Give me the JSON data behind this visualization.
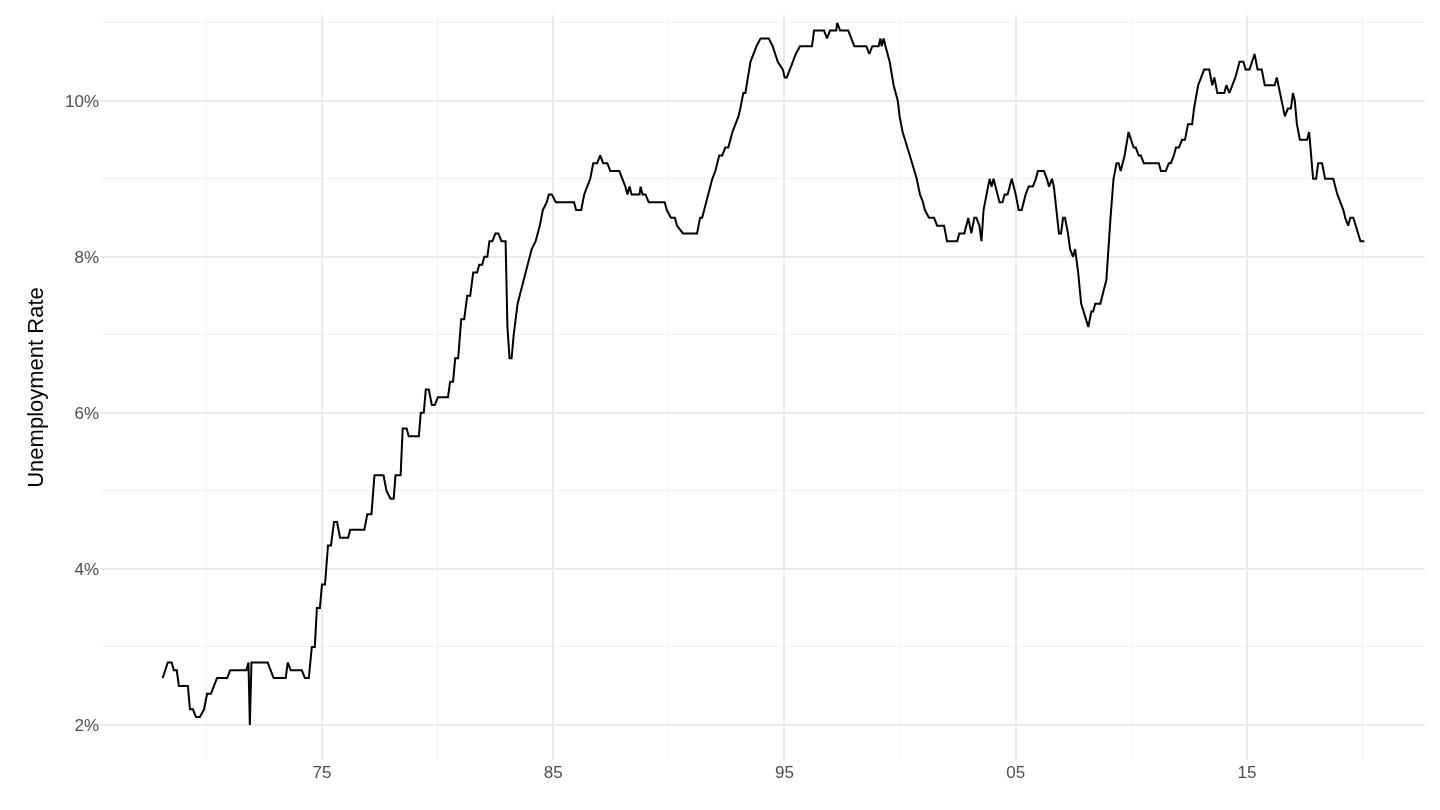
{
  "chart_data": {
    "type": "line",
    "ylabel": "Unemployment Rate",
    "xlim": [
      1965.4,
      2022.7
    ],
    "ylim": [
      1.55,
      11.1
    ],
    "xticks": [
      {
        "value": 1970,
        "label": null
      },
      {
        "value": 1975,
        "label": "75"
      },
      {
        "value": 1980,
        "label": null
      },
      {
        "value": 1985,
        "label": "85"
      },
      {
        "value": 1990,
        "label": null
      },
      {
        "value": 1995,
        "label": "95"
      },
      {
        "value": 2000,
        "label": null
      },
      {
        "value": 2005,
        "label": "05"
      },
      {
        "value": 2010,
        "label": null
      },
      {
        "value": 2015,
        "label": "15"
      },
      {
        "value": 2020,
        "label": null
      }
    ],
    "yticks": [
      {
        "value": 2,
        "label": "2%"
      },
      {
        "value": 3,
        "label": null
      },
      {
        "value": 4,
        "label": "4%"
      },
      {
        "value": 5,
        "label": null
      },
      {
        "value": 6,
        "label": "6%"
      },
      {
        "value": 7,
        "label": null
      },
      {
        "value": 8,
        "label": "8%"
      },
      {
        "value": 9,
        "label": null
      },
      {
        "value": 10,
        "label": "10%"
      },
      {
        "value": 11,
        "label": null
      }
    ],
    "grid": true,
    "marker": "none",
    "line_style": "solid",
    "series": [
      {
        "color": "#000000",
        "x": [
          1968.11,
          1968.33,
          1968.5,
          1968.59,
          1968.72,
          1968.81,
          1969.2,
          1969.29,
          1969.42,
          1969.55,
          1969.72,
          1969.9,
          1970.03,
          1970.2,
          1970.33,
          1970.46,
          1970.9,
          1971.03,
          1971.73,
          1971.82,
          1971.88,
          1971.95,
          1972.65,
          1972.78,
          1972.91,
          1973.43,
          1973.52,
          1973.65,
          1974.13,
          1974.26,
          1974.43,
          1974.56,
          1974.69,
          1974.78,
          1974.91,
          1975.0,
          1975.13,
          1975.26,
          1975.39,
          1975.52,
          1975.65,
          1975.78,
          1976.13,
          1976.22,
          1976.83,
          1976.96,
          1977.14,
          1977.27,
          1977.66,
          1977.79,
          1977.96,
          1978.1,
          1978.18,
          1978.4,
          1978.49,
          1978.66,
          1978.75,
          1979.19,
          1979.27,
          1979.4,
          1979.49,
          1979.62,
          1979.75,
          1979.88,
          1980.01,
          1980.45,
          1980.54,
          1980.67,
          1980.76,
          1980.89,
          1981.02,
          1981.15,
          1981.28,
          1981.41,
          1981.54,
          1981.71,
          1981.8,
          1981.93,
          1982.02,
          1982.15,
          1982.24,
          1982.37,
          1982.5,
          1982.63,
          1982.76,
          1982.94,
          1983.02,
          1983.11,
          1983.2,
          1983.29,
          1983.46,
          1983.72,
          1984.07,
          1984.24,
          1984.42,
          1984.55,
          1984.72,
          1984.81,
          1984.94,
          1985.11,
          1985.9,
          1985.99,
          1986.21,
          1986.34,
          1986.6,
          1986.73,
          1986.9,
          1987.03,
          1987.16,
          1987.34,
          1987.47,
          1987.86,
          1987.99,
          1988.12,
          1988.21,
          1988.3,
          1988.39,
          1988.73,
          1988.78,
          1988.86,
          1988.99,
          1989.13,
          1989.82,
          1989.91,
          1990.09,
          1990.26,
          1990.35,
          1990.61,
          1991.22,
          1991.35,
          1991.44,
          1991.88,
          1992.01,
          1992.18,
          1992.31,
          1992.44,
          1992.57,
          1992.75,
          1992.88,
          1993.01,
          1993.09,
          1993.22,
          1993.31,
          1993.53,
          1993.79,
          1993.97,
          1994.32,
          1994.49,
          1994.71,
          1994.93,
          1995.01,
          1995.1,
          1995.23,
          1995.36,
          1995.49,
          1995.67,
          1996.19,
          1996.28,
          1996.71,
          1996.84,
          1996.97,
          1997.24,
          1997.28,
          1997.41,
          1997.76,
          1997.89,
          1998.02,
          1998.54,
          1998.67,
          1998.8,
          1999.07,
          1999.15,
          1999.2,
          1999.29,
          1999.37,
          1999.55,
          1999.72,
          1999.9,
          1999.98,
          2000.11,
          2000.42,
          2000.72,
          2000.86,
          2000.99,
          2001.07,
          2001.25,
          2001.47,
          2001.6,
          2001.9,
          2002.03,
          2002.47,
          2002.56,
          2002.78,
          2002.95,
          2003.08,
          2003.21,
          2003.3,
          2003.43,
          2003.52,
          2003.61,
          2003.74,
          2003.87,
          2003.96,
          2004.04,
          2004.3,
          2004.43,
          2004.52,
          2004.65,
          2004.83,
          2005.0,
          2005.13,
          2005.26,
          2005.43,
          2005.56,
          2005.74,
          2005.87,
          2005.96,
          2006.22,
          2006.35,
          2006.44,
          2006.57,
          2006.65,
          2006.87,
          2006.96,
          2007.05,
          2007.13,
          2007.26,
          2007.35,
          2007.48,
          2007.57,
          2007.7,
          2007.83,
          2008.14,
          2008.27,
          2008.35,
          2008.44,
          2008.66,
          2008.83,
          2008.92,
          2009.1,
          2009.23,
          2009.36,
          2009.45,
          2009.54,
          2009.71,
          2009.88,
          2010.1,
          2010.19,
          2010.32,
          2010.41,
          2010.54,
          2011.19,
          2011.28,
          2011.49,
          2011.62,
          2011.71,
          2011.84,
          2011.93,
          2012.06,
          2012.19,
          2012.32,
          2012.45,
          2012.63,
          2012.71,
          2012.89,
          2013.02,
          2013.15,
          2013.37,
          2013.5,
          2013.59,
          2013.72,
          2014.02,
          2014.11,
          2014.24,
          2014.37,
          2014.5,
          2014.68,
          2014.85,
          2014.94,
          2015.11,
          2015.33,
          2015.46,
          2015.64,
          2015.77,
          2016.2,
          2016.29,
          2016.64,
          2016.77,
          2016.9,
          2016.99,
          2017.07,
          2017.16,
          2017.29,
          2017.6,
          2017.69,
          2017.86,
          2017.99,
          2018.08,
          2018.25,
          2018.38,
          2018.73,
          2018.91,
          2019.04,
          2019.17,
          2019.25,
          2019.38,
          2019.47,
          2019.6,
          2019.91,
          2020.08
        ],
        "values": [
          2.6,
          2.8,
          2.8,
          2.7,
          2.7,
          2.5,
          2.5,
          2.2,
          2.2,
          2.1,
          2.1,
          2.2,
          2.4,
          2.4,
          2.5,
          2.6,
          2.6,
          2.7,
          2.7,
          2.8,
          2.0,
          2.8,
          2.8,
          2.7,
          2.6,
          2.6,
          2.8,
          2.7,
          2.7,
          2.6,
          2.6,
          3.0,
          3.0,
          3.5,
          3.5,
          3.8,
          3.8,
          4.3,
          4.3,
          4.6,
          4.6,
          4.4,
          4.4,
          4.5,
          4.5,
          4.7,
          4.7,
          5.2,
          5.2,
          5.0,
          4.9,
          4.9,
          5.2,
          5.2,
          5.8,
          5.8,
          5.7,
          5.7,
          6.0,
          6.0,
          6.3,
          6.3,
          6.1,
          6.1,
          6.2,
          6.2,
          6.4,
          6.4,
          6.7,
          6.7,
          7.2,
          7.2,
          7.5,
          7.5,
          7.8,
          7.8,
          7.9,
          7.9,
          8.0,
          8.0,
          8.2,
          8.2,
          8.3,
          8.3,
          8.2,
          8.2,
          7.1,
          6.7,
          6.7,
          7.0,
          7.4,
          7.7,
          8.1,
          8.2,
          8.4,
          8.6,
          8.7,
          8.8,
          8.8,
          8.7,
          8.7,
          8.6,
          8.6,
          8.8,
          9.0,
          9.2,
          9.2,
          9.3,
          9.2,
          9.2,
          9.1,
          9.1,
          9.0,
          8.9,
          8.8,
          8.9,
          8.8,
          8.8,
          8.9,
          8.8,
          8.8,
          8.7,
          8.7,
          8.6,
          8.5,
          8.5,
          8.4,
          8.3,
          8.3,
          8.5,
          8.5,
          9.0,
          9.1,
          9.3,
          9.3,
          9.4,
          9.4,
          9.6,
          9.7,
          9.8,
          9.9,
          10.1,
          10.1,
          10.5,
          10.7,
          10.8,
          10.8,
          10.7,
          10.5,
          10.4,
          10.3,
          10.3,
          10.4,
          10.5,
          10.6,
          10.7,
          10.7,
          10.9,
          10.9,
          10.8,
          10.9,
          10.9,
          11.0,
          10.9,
          10.9,
          10.8,
          10.7,
          10.7,
          10.6,
          10.7,
          10.7,
          10.8,
          10.7,
          10.8,
          10.7,
          10.5,
          10.2,
          10.0,
          9.8,
          9.6,
          9.3,
          9.0,
          8.8,
          8.7,
          8.6,
          8.5,
          8.5,
          8.4,
          8.4,
          8.2,
          8.2,
          8.3,
          8.3,
          8.5,
          8.3,
          8.5,
          8.5,
          8.4,
          8.2,
          8.6,
          8.8,
          9.0,
          8.9,
          9.0,
          8.7,
          8.7,
          8.8,
          8.8,
          9.0,
          8.8,
          8.6,
          8.6,
          8.8,
          8.9,
          8.9,
          9.0,
          9.1,
          9.1,
          9.0,
          8.9,
          9.0,
          8.9,
          8.3,
          8.3,
          8.5,
          8.5,
          8.3,
          8.1,
          8.0,
          8.1,
          7.8,
          7.4,
          7.1,
          7.3,
          7.3,
          7.4,
          7.4,
          7.6,
          7.7,
          8.5,
          9.0,
          9.2,
          9.2,
          9.1,
          9.3,
          9.6,
          9.4,
          9.4,
          9.3,
          9.3,
          9.2,
          9.2,
          9.1,
          9.1,
          9.2,
          9.2,
          9.3,
          9.4,
          9.4,
          9.5,
          9.5,
          9.7,
          9.7,
          9.9,
          10.2,
          10.3,
          10.4,
          10.4,
          10.2,
          10.3,
          10.1,
          10.1,
          10.2,
          10.1,
          10.2,
          10.3,
          10.5,
          10.5,
          10.4,
          10.4,
          10.6,
          10.4,
          10.4,
          10.2,
          10.2,
          10.3,
          9.8,
          9.9,
          9.9,
          10.1,
          10.0,
          9.7,
          9.5,
          9.5,
          9.6,
          9.0,
          9.0,
          9.2,
          9.2,
          9.0,
          9.0,
          8.8,
          8.7,
          8.6,
          8.5,
          8.4,
          8.5,
          8.5,
          8.2,
          8.2
        ]
      }
    ]
  }
}
